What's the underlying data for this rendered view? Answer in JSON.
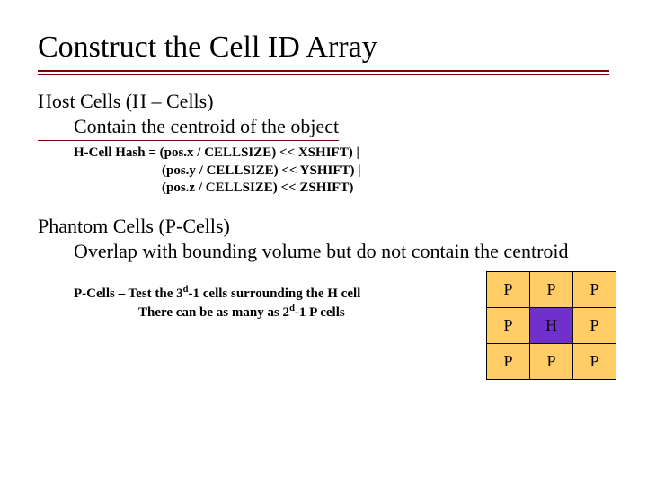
{
  "title": "Construct the Cell ID Array",
  "host": {
    "heading": "Host Cells (H – Cells)",
    "desc": "Contain the centroid of the object"
  },
  "hash": {
    "l1": "H-Cell Hash = (pos.x / CELLSIZE) << XSHIFT) |",
    "l2": "(pos.y / CELLSIZE) << YSHIFT) |",
    "l3": "(pos.z / CELLSIZE) << ZSHIFT)"
  },
  "phantom": {
    "heading": "Phantom Cells (P-Cells)",
    "desc": "Overlap with bounding volume but do not contain the centroid"
  },
  "note": {
    "l1_a": "P-Cells – Test the 3",
    "l1_b": "-1 cells surrounding the H cell",
    "l2_a": "There can be as many as 2",
    "l2_b": "-1 P cells",
    "sup": "d"
  },
  "grid": {
    "cells": [
      [
        "P",
        "P",
        "P"
      ],
      [
        "P",
        "H",
        "P"
      ],
      [
        "P",
        "P",
        "P"
      ]
    ],
    "p_color": "#ffcc66",
    "h_color": "#7030cc"
  }
}
